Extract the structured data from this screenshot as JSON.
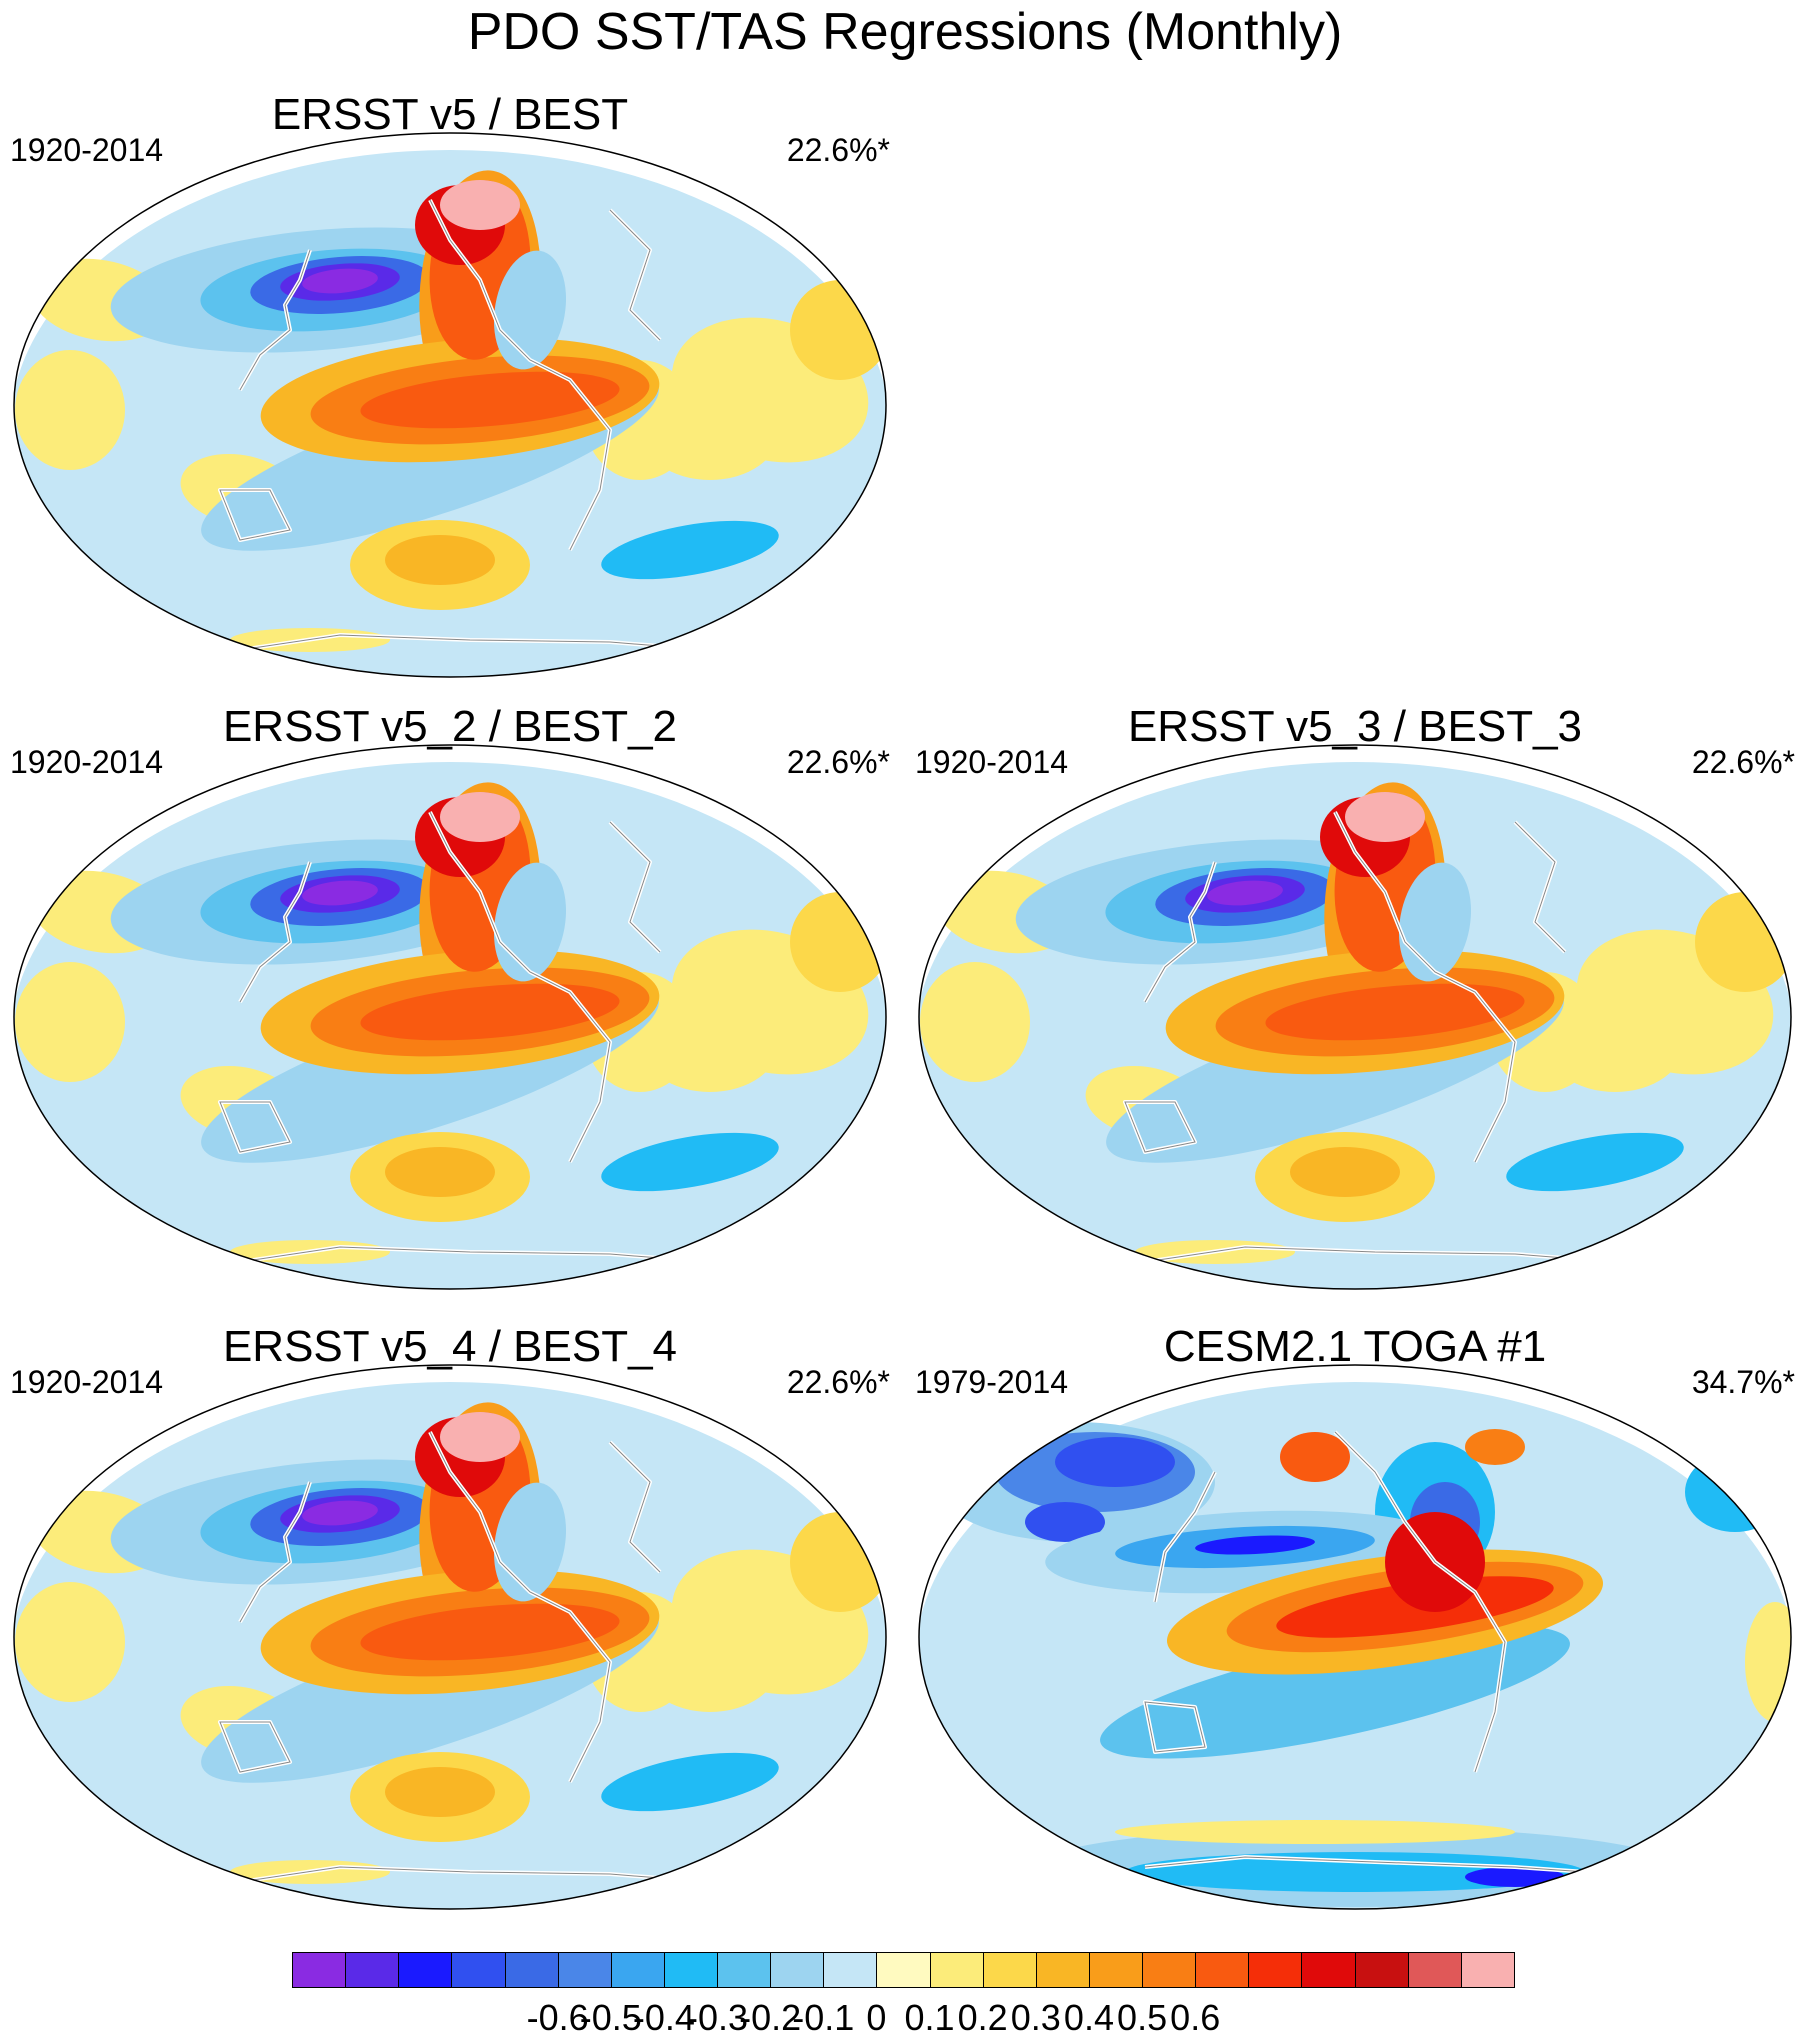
{
  "figure": {
    "title": "PDO SST/TAS Regressions (Monthly)"
  },
  "panels": [
    {
      "title": "ERSST v5 / BEST",
      "period": "1920-2014",
      "variance": "22.6%*",
      "pattern": "obs"
    },
    {
      "title": "ERSST v5_2 / BEST_2",
      "period": "1920-2014",
      "variance": "22.6%*",
      "pattern": "obs"
    },
    {
      "title": "ERSST v5_3 / BEST_3",
      "period": "1920-2014",
      "variance": "22.6%*",
      "pattern": "obs"
    },
    {
      "title": "ERSST v5_4 / BEST_4",
      "period": "1920-2014",
      "variance": "22.6%*",
      "pattern": "obs"
    },
    {
      "title": "CESM2.1 TOGA #1",
      "period": "1979-2014",
      "variance": "34.7%*",
      "pattern": "model"
    }
  ],
  "colorbar": {
    "colors": [
      "#8a2be2",
      "#5a2ae8",
      "#1a1aff",
      "#3050f0",
      "#3a6ae6",
      "#4a86e8",
      "#3aa6f0",
      "#20bbf5",
      "#5cc2ee",
      "#9dd4f0",
      "#c5e6f6",
      "#fffac0",
      "#fcec7a",
      "#fcd84a",
      "#f9b625",
      "#f99d1a",
      "#f97e14",
      "#f95a10",
      "#f52e08",
      "#e00a0a",
      "#c81010",
      "#e05858",
      "#f9b0b0"
    ],
    "tick_labels": [
      "-0.6",
      "-0.5",
      "-0.4",
      "-0.3",
      "-0.2",
      "-0.1",
      "0",
      "0.1",
      "0.2",
      "0.3",
      "0.4",
      "0.5",
      "0.6"
    ]
  }
}
